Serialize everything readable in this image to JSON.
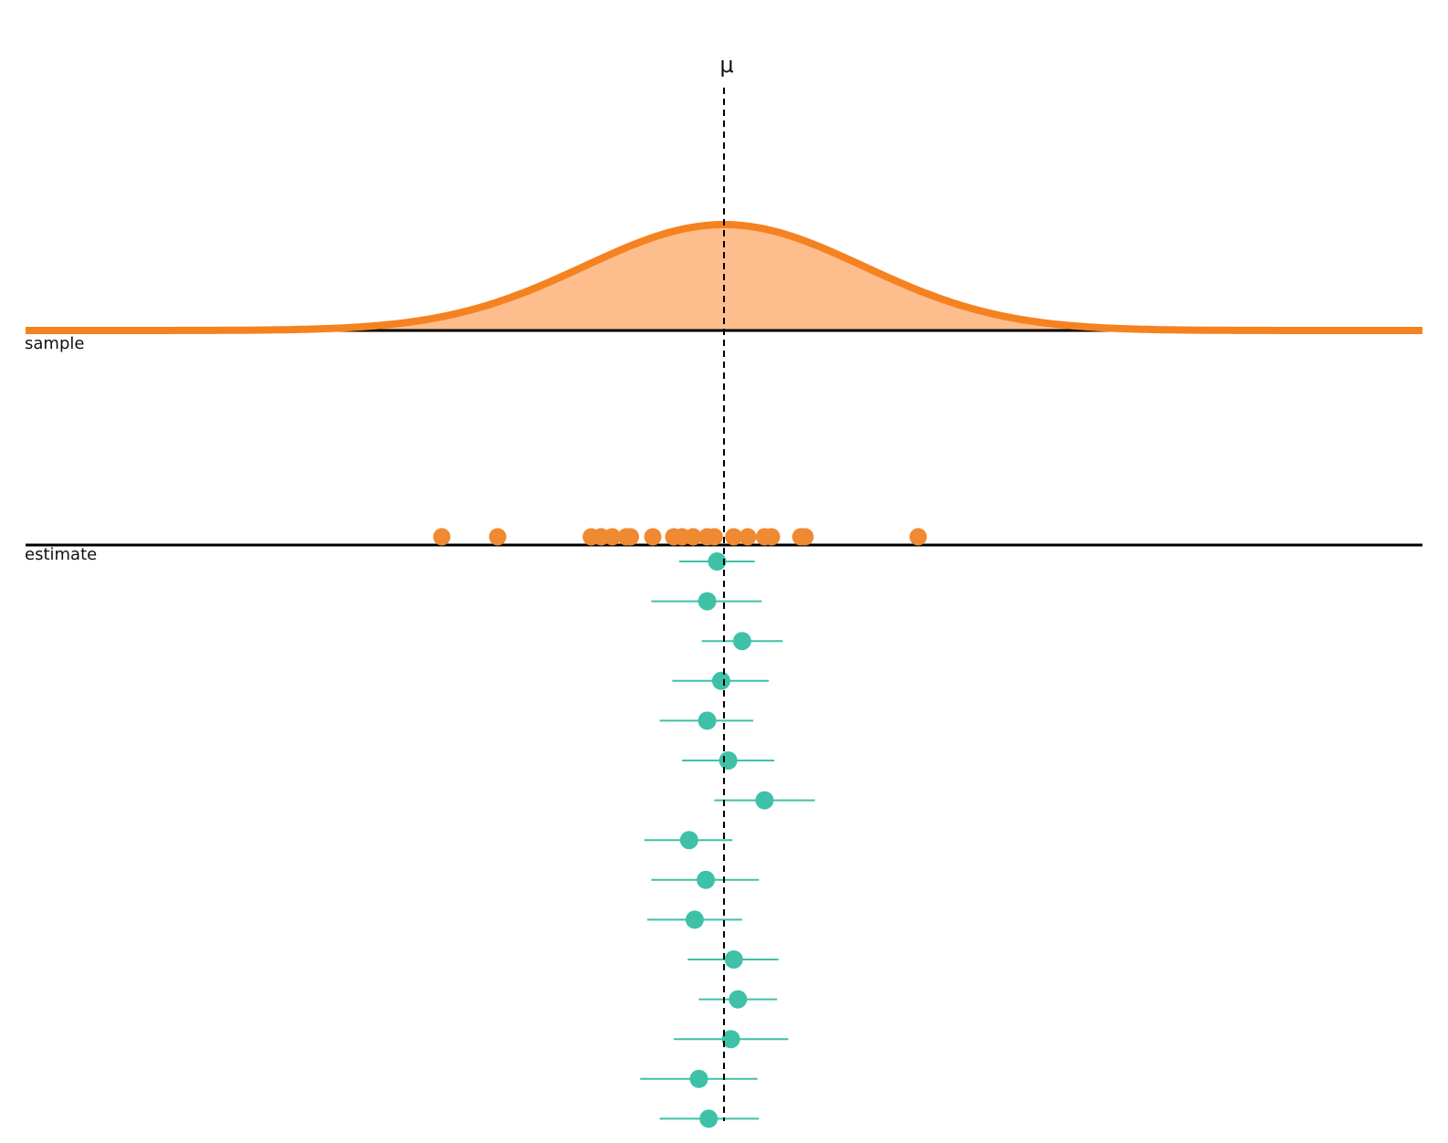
{
  "labels": {
    "mu": "μ",
    "sample": "sample",
    "estimate": "estimate"
  },
  "colors": {
    "curve": "#f58220",
    "fill": "#fdbd8c",
    "sample_point": "#ef8a32",
    "estimate": "#3fc1a7",
    "axis": "#000000",
    "mu_line": "#000000"
  },
  "chart_data": {
    "type": "scatter",
    "x_range": [
      -5,
      5
    ],
    "mu": 0,
    "population": {
      "distribution": "normal",
      "mean": 0,
      "sd": 1
    },
    "sample_points": [
      -2.02,
      -1.62,
      -0.95,
      -0.88,
      -0.8,
      -0.7,
      -0.67,
      -0.51,
      -0.36,
      -0.3,
      -0.22,
      -0.12,
      -0.07,
      0.07,
      0.17,
      0.29,
      0.34,
      0.55,
      0.58,
      1.39
    ],
    "estimates": [
      {
        "mean": -0.05,
        "lower": -0.32,
        "upper": 0.22
      },
      {
        "mean": -0.12,
        "lower": -0.52,
        "upper": 0.27
      },
      {
        "mean": 0.13,
        "lower": -0.16,
        "upper": 0.42
      },
      {
        "mean": -0.02,
        "lower": -0.37,
        "upper": 0.32
      },
      {
        "mean": -0.12,
        "lower": -0.46,
        "upper": 0.21
      },
      {
        "mean": 0.03,
        "lower": -0.3,
        "upper": 0.36
      },
      {
        "mean": 0.29,
        "lower": -0.07,
        "upper": 0.65
      },
      {
        "mean": -0.25,
        "lower": -0.57,
        "upper": 0.06
      },
      {
        "mean": -0.13,
        "lower": -0.52,
        "upper": 0.25
      },
      {
        "mean": -0.21,
        "lower": -0.55,
        "upper": 0.13
      },
      {
        "mean": 0.07,
        "lower": -0.26,
        "upper": 0.39
      },
      {
        "mean": 0.1,
        "lower": -0.18,
        "upper": 0.38
      },
      {
        "mean": 0.05,
        "lower": -0.36,
        "upper": 0.46
      },
      {
        "mean": -0.18,
        "lower": -0.6,
        "upper": 0.24
      },
      {
        "mean": -0.11,
        "lower": -0.46,
        "upper": 0.25
      }
    ]
  }
}
